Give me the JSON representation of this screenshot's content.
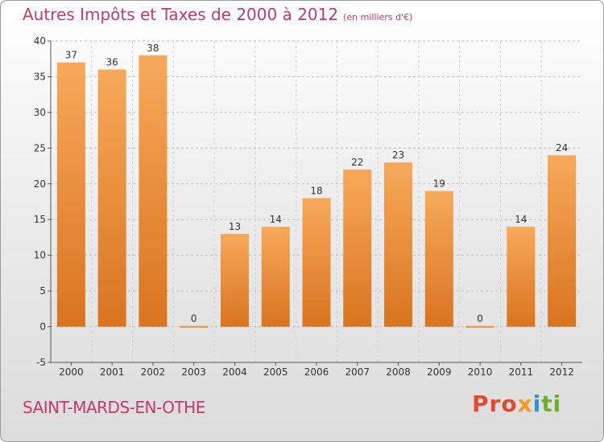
{
  "header": {
    "title": "Autres Impôts et Taxes de 2000 à 2012",
    "unit": "(en milliers d'€)"
  },
  "footer": {
    "town": "SAINT-MARDS-EN-OTHE",
    "brand_parts": [
      "Pro",
      "x",
      "i",
      "ti"
    ]
  },
  "chart_data": {
    "type": "bar",
    "title": "Autres Impôts et Taxes de 2000 à 2012",
    "xlabel": "",
    "ylabel": "",
    "categories": [
      "2000",
      "2001",
      "2002",
      "2003",
      "2004",
      "2005",
      "2006",
      "2007",
      "2008",
      "2009",
      "2010",
      "2011",
      "2012"
    ],
    "values": [
      37,
      36,
      38,
      0,
      13,
      14,
      18,
      22,
      23,
      19,
      0,
      14,
      24
    ],
    "ylim": [
      -5,
      40
    ],
    "yticks": [
      -5,
      0,
      5,
      10,
      15,
      20,
      25,
      30,
      35,
      40
    ],
    "grid": "horizontal-dashed",
    "bar_color_top": "#f7a95a",
    "bar_color_bottom": "#d9741f",
    "legend": "none"
  }
}
